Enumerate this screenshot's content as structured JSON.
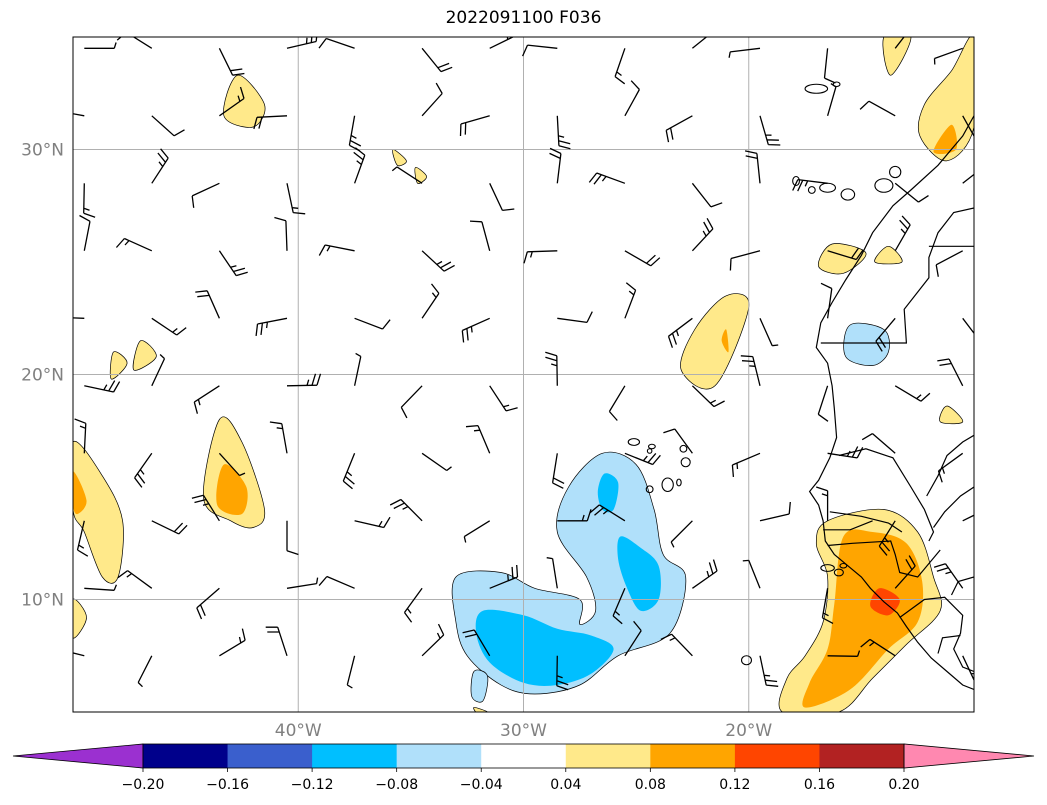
{
  "title": "2022091100 F036",
  "colors": {
    "grid": "#b0b0b0",
    "coast": "#000000",
    "frame": "#000000"
  },
  "map": {
    "lon_range": [
      -50,
      -10
    ],
    "lat_range": [
      5,
      35
    ],
    "lat_ticks": [
      {
        "value": 30,
        "label": "30°N"
      },
      {
        "value": 20,
        "label": "20°N"
      },
      {
        "value": 10,
        "label": "10°N"
      }
    ],
    "lon_ticks": [
      {
        "value": -40,
        "label": "40°W"
      },
      {
        "value": -30,
        "label": "30°W"
      },
      {
        "value": -20,
        "label": "20°W"
      }
    ]
  },
  "chart_data": {
    "type": "heatmap",
    "title": "2022091100 F036",
    "field": "filled contours with wind barbs",
    "colorbar": {
      "levels": [
        -0.2,
        -0.16,
        -0.12,
        -0.08,
        -0.04,
        0.04,
        0.08,
        0.12,
        0.16,
        0.2
      ],
      "tick_labels": [
        "−0.20",
        "−0.16",
        "−0.12",
        "−0.08",
        "−0.04",
        "0.04",
        "0.08",
        "0.12",
        "0.16",
        "0.20"
      ],
      "colors": [
        "#9b30d0",
        "#00008b",
        "#3a5fcd",
        "#00bfff",
        "#b0e0fa",
        "#ffffff",
        "#ffe98a",
        "#ffa500",
        "#ff4500",
        "#b22222",
        "#ff88b0"
      ],
      "extend": "both"
    },
    "regions": [
      {
        "name": "cape-verde-low",
        "value": -0.06,
        "poly": [
          [
            -33,
            11
          ],
          [
            -31,
            11.2
          ],
          [
            -29.5,
            10.5
          ],
          [
            -27.5,
            10
          ],
          [
            -27.5,
            8.9
          ],
          [
            -26.8,
            9.5
          ],
          [
            -27.2,
            11
          ],
          [
            -28.5,
            13
          ],
          [
            -28,
            15
          ],
          [
            -26.5,
            16.5
          ],
          [
            -25,
            16
          ],
          [
            -24.2,
            14
          ],
          [
            -23.8,
            12
          ],
          [
            -22.8,
            11
          ],
          [
            -23.5,
            8.5
          ],
          [
            -25.8,
            7.5
          ],
          [
            -27.5,
            6.2
          ],
          [
            -29.5,
            5.8
          ],
          [
            -31,
            6.2
          ],
          [
            -32.5,
            7.5
          ],
          [
            -33,
            9
          ]
        ]
      },
      {
        "name": "cape-verde-low-core-1",
        "value": -0.1,
        "poly": [
          [
            -31.8,
            9.5
          ],
          [
            -30,
            9.3
          ],
          [
            -28.5,
            8.7
          ],
          [
            -27,
            8.4
          ],
          [
            -26,
            7.8
          ],
          [
            -27,
            6.7
          ],
          [
            -28.5,
            6.2
          ],
          [
            -30,
            6.3
          ],
          [
            -31.5,
            7.2
          ],
          [
            -32.1,
            8.5
          ]
        ]
      },
      {
        "name": "cape-verde-low-core-2",
        "value": -0.1,
        "poly": [
          [
            -25.7,
            12.8
          ],
          [
            -24.8,
            12.3
          ],
          [
            -24,
            11.5
          ],
          [
            -24,
            10
          ],
          [
            -24.8,
            9.5
          ],
          [
            -25.4,
            10.5
          ],
          [
            -25.8,
            11.8
          ]
        ]
      },
      {
        "name": "cape-verde-low-core-3",
        "value": -0.1,
        "poly": [
          [
            -26.4,
            15.6
          ],
          [
            -25.8,
            15.2
          ],
          [
            -26,
            14
          ],
          [
            -26.5,
            14
          ],
          [
            -26.7,
            14.8
          ]
        ]
      },
      {
        "name": "small-low-west",
        "value": -0.06,
        "poly": [
          [
            -32.2,
            6.8
          ],
          [
            -31.6,
            6.6
          ],
          [
            -31.8,
            5.5
          ],
          [
            -32.3,
            5.7
          ]
        ]
      },
      {
        "name": "africa-low",
        "value": -0.06,
        "poly": [
          [
            -15.5,
            22.2
          ],
          [
            -14,
            22
          ],
          [
            -13.8,
            21
          ],
          [
            -14.5,
            20.4
          ],
          [
            -15.7,
            20.8
          ]
        ]
      },
      {
        "name": "guinea-high",
        "value": 0.06,
        "poly": [
          [
            -16.5,
            13.5
          ],
          [
            -14,
            14
          ],
          [
            -12.5,
            13
          ],
          [
            -11.8,
            11
          ],
          [
            -11.5,
            9.5
          ],
          [
            -13,
            8
          ],
          [
            -14.5,
            6.5
          ],
          [
            -16,
            5
          ],
          [
            -18.5,
            5
          ],
          [
            -18.3,
            6.5
          ],
          [
            -17.5,
            7.5
          ],
          [
            -16.7,
            9
          ],
          [
            -16.5,
            11
          ],
          [
            -17,
            12.5
          ]
        ]
      },
      {
        "name": "guinea-high-core",
        "value": 0.1,
        "poly": [
          [
            -15.8,
            12.8
          ],
          [
            -14.5,
            13
          ],
          [
            -13,
            12.5
          ],
          [
            -12.3,
            10.8
          ],
          [
            -12.5,
            9
          ],
          [
            -13.8,
            7.8
          ],
          [
            -15.5,
            6
          ],
          [
            -17.5,
            5.2
          ],
          [
            -17.3,
            6.3
          ],
          [
            -16.5,
            7.8
          ],
          [
            -16.2,
            9.8
          ]
        ]
      },
      {
        "name": "guinea-high-peak",
        "value": 0.14,
        "poly": [
          [
            -14.2,
            10.5
          ],
          [
            -13.3,
            10
          ],
          [
            -13.8,
            9.3
          ],
          [
            -14.6,
            9.7
          ]
        ]
      },
      {
        "name": "west-high-1",
        "value": 0.06,
        "poly": [
          [
            -43.5,
            18
          ],
          [
            -42.5,
            17
          ],
          [
            -41.5,
            14
          ],
          [
            -42,
            13.2
          ],
          [
            -43,
            13.5
          ],
          [
            -44.2,
            14.5
          ]
        ]
      },
      {
        "name": "west-high-1-core",
        "value": 0.1,
        "poly": [
          [
            -43.3,
            16
          ],
          [
            -42.3,
            15
          ],
          [
            -42.5,
            13.8
          ],
          [
            -43.6,
            14.2
          ]
        ]
      },
      {
        "name": "west-high-2",
        "value": 0.06,
        "poly": [
          [
            -50,
            17
          ],
          [
            -48.7,
            15.5
          ],
          [
            -47.8,
            13.5
          ],
          [
            -48,
            11
          ],
          [
            -48.7,
            11
          ],
          [
            -49.5,
            13
          ],
          [
            -50,
            14
          ]
        ]
      },
      {
        "name": "west-high-2-core",
        "value": 0.1,
        "poly": [
          [
            -50,
            15.7
          ],
          [
            -49.4,
            14.4
          ],
          [
            -49.8,
            13.8
          ],
          [
            -50,
            14.2
          ]
        ]
      },
      {
        "name": "west-high-3",
        "value": 0.06,
        "poly": [
          [
            -50,
            10
          ],
          [
            -49.4,
            9.2
          ],
          [
            -50,
            8.3
          ]
        ]
      },
      {
        "name": "west-high-4",
        "value": 0.06,
        "poly": [
          [
            -48.3,
            19.8
          ],
          [
            -47.6,
            20.5
          ],
          [
            -48.2,
            21
          ]
        ]
      },
      {
        "name": "west-high-5",
        "value": 0.06,
        "poly": [
          [
            -47,
            21.5
          ],
          [
            -46.3,
            20.8
          ],
          [
            -47.3,
            20.2
          ]
        ]
      },
      {
        "name": "north-high-1",
        "value": 0.06,
        "poly": [
          [
            -42.7,
            33.3
          ],
          [
            -41.5,
            32
          ],
          [
            -42,
            31
          ],
          [
            -43.3,
            31.5
          ]
        ]
      },
      {
        "name": "north-high-2",
        "value": 0.06,
        "poly": [
          [
            -10,
            35
          ],
          [
            -10,
            31
          ],
          [
            -11.2,
            29.5
          ],
          [
            -12.4,
            30.6
          ],
          [
            -12.2,
            32
          ],
          [
            -11,
            33.5
          ]
        ]
      },
      {
        "name": "north-high-2-core",
        "value": 0.1,
        "poly": [
          [
            -11,
            31.1
          ],
          [
            -10.8,
            30
          ],
          [
            -11.8,
            29.9
          ]
        ]
      },
      {
        "name": "north-high-3",
        "value": 0.06,
        "poly": [
          [
            -14,
            35
          ],
          [
            -12.8,
            35
          ],
          [
            -13.7,
            33.3
          ]
        ]
      },
      {
        "name": "mid-high",
        "value": 0.06,
        "poly": [
          [
            -21,
            23.5
          ],
          [
            -20,
            23
          ],
          [
            -21.5,
            19.5
          ],
          [
            -23,
            20.2
          ],
          [
            -22.4,
            22
          ]
        ]
      },
      {
        "name": "mid-high-core",
        "value": 0.1,
        "poly": [
          [
            -21,
            22
          ],
          [
            -20.9,
            21
          ],
          [
            -21.2,
            21.5
          ]
        ]
      },
      {
        "name": "africa-high-1",
        "value": 0.06,
        "poly": [
          [
            -16.3,
            25.8
          ],
          [
            -14.8,
            25.4
          ],
          [
            -15.8,
            24.5
          ],
          [
            -16.9,
            24.8
          ]
        ]
      },
      {
        "name": "africa-high-2",
        "value": 0.06,
        "poly": [
          [
            -13.8,
            25.7
          ],
          [
            -13.2,
            25
          ],
          [
            -14.4,
            25
          ]
        ]
      },
      {
        "name": "africa-high-3",
        "value": 0.06,
        "poly": [
          [
            -11.2,
            18.6
          ],
          [
            -10.5,
            17.9
          ],
          [
            -11.5,
            17.9
          ]
        ]
      },
      {
        "name": "small-high-azores",
        "value": 0.06,
        "poly": [
          [
            -35.8,
            30
          ],
          [
            -35.2,
            29.5
          ],
          [
            -35.6,
            29.3
          ]
        ]
      },
      {
        "name": "small-high-2",
        "value": 0.06,
        "poly": [
          [
            -34.8,
            29.2
          ],
          [
            -34.3,
            28.8
          ],
          [
            -34.7,
            28.5
          ]
        ]
      },
      {
        "name": "small-high-3",
        "value": 0.06,
        "poly": [
          [
            -32.2,
            5.2
          ],
          [
            -31.6,
            5
          ],
          [
            -32,
            4.9
          ]
        ]
      }
    ],
    "wind_barbs": {
      "grid_lon": [
        -49.5,
        -46.5,
        -43.5,
        -40.5,
        -37.5,
        -34.5,
        -31.5,
        -28.5,
        -25.5,
        -22.5,
        -19.5,
        -16.5,
        -13.5,
        -10.5
      ],
      "grid_lat": [
        34.5,
        31.5,
        28.5,
        25.5,
        22.5,
        19.5,
        16.5,
        13.5,
        10.5,
        7.5
      ],
      "units": "kt",
      "note": "Barb directions/speeds approximated from the figure"
    }
  }
}
